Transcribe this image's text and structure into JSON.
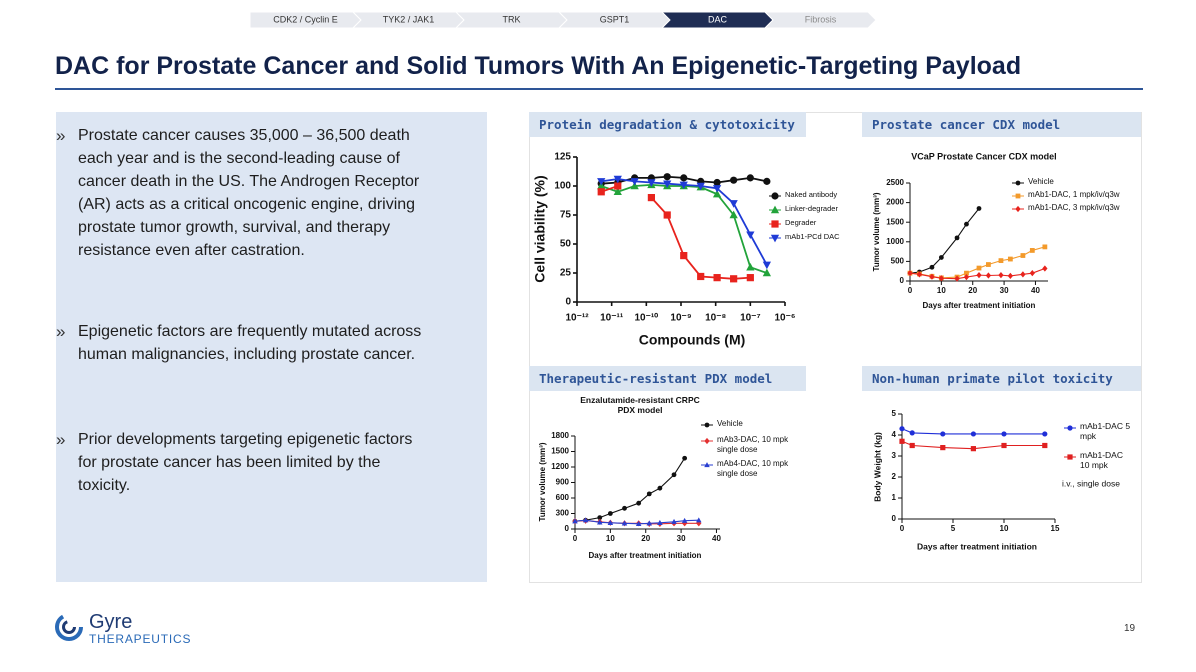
{
  "nav": {
    "tabs": [
      "CDK2 / Cyclin E",
      "TYK2 / JAK1",
      "TRK",
      "GSPT1",
      "DAC",
      "Fibrosis"
    ],
    "active_tab": 4
  },
  "header": {
    "title": "DAC for Prostate Cancer and Solid Tumors With An Epigenetic-Targeting Payload"
  },
  "bullets": [
    "Prostate cancer causes 35,000 – 36,500 death each year and is the second-leading cause of cancer death in the US. The Androgen Receptor (AR) acts as a critical oncogenic engine, driving prostate tumor growth, survival, and therapy resistance even after castration.",
    "Epigenetic factors are frequently mutated across human malignancies, including prostate cancer.",
    "Prior developments targeting epigenetic factors for prostate cancer has been limited by the toxicity."
  ],
  "panels": [
    "Protein degradation & cytotoxicity",
    "Prostate cancer CDX model",
    "Therapeutic-resistant PDX model",
    "Non-human primate pilot toxicity"
  ],
  "chart_data": [
    {
      "type": "line",
      "x_label": "Compounds (M)",
      "y_label": "Cell viability (%)",
      "xscale": "log",
      "x": [
        5e-12,
        1.5e-11,
        4.6e-11,
        1.4e-10,
        4e-10,
        1.2e-09,
        3.7e-09,
        1.1e-08,
        3.3e-08,
        1e-07,
        3e-07
      ],
      "xlim": [
        1e-12,
        1e-06
      ],
      "xticks": [
        {
          "value": 1e-12,
          "label": "10⁻¹²"
        },
        {
          "value": 1e-11,
          "label": "10⁻¹¹"
        },
        {
          "value": 1e-10,
          "label": "10⁻¹⁰"
        },
        {
          "value": 1e-09,
          "label": "10⁻⁹"
        },
        {
          "value": 1e-08,
          "label": "10⁻⁸"
        },
        {
          "value": 1e-07,
          "label": "10⁻⁷"
        },
        {
          "value": 1e-06,
          "label": "10⁻⁶"
        }
      ],
      "ylim": [
        0,
        125
      ],
      "yticks": [
        0,
        25,
        50,
        75,
        100,
        125
      ],
      "series": [
        {
          "name": "Naked antibody",
          "color": "#111111",
          "marker": "circle",
          "values": [
            102,
            103,
            107,
            107,
            108,
            107,
            104,
            103,
            105,
            107,
            104
          ]
        },
        {
          "name": "Linker-degrader",
          "color": "#22a33a",
          "marker": "triangle",
          "values": [
            100,
            95,
            100,
            101,
            100,
            100,
            99,
            93,
            75,
            30,
            25
          ]
        },
        {
          "name": "Degrader",
          "color": "#e8231d",
          "marker": "square",
          "values": [
            95,
            100,
            null,
            90,
            75,
            40,
            22,
            21,
            20,
            21,
            null
          ]
        },
        {
          "name": "mAb1-PCd DAC",
          "color": "#1f3bd6",
          "marker": "triangle-down",
          "values": [
            104,
            106,
            104,
            103,
            102,
            101,
            100,
            98,
            85,
            58,
            32
          ]
        }
      ]
    },
    {
      "type": "line",
      "title": "VCaP Prostate Cancer CDX model",
      "x_label": "Days after treatment initiation",
      "y_label": "Tumor volume (mm³)",
      "x": [
        0,
        3,
        7,
        10,
        15,
        18,
        22,
        25,
        29,
        32,
        36,
        39,
        43
      ],
      "xlim": [
        0,
        44
      ],
      "xticks": [
        0,
        10,
        20,
        30,
        40
      ],
      "ylim": [
        0,
        2500
      ],
      "yticks": [
        0,
        500,
        1000,
        1500,
        2000,
        2500
      ],
      "series": [
        {
          "name": "Vehicle",
          "color": "#111111",
          "marker": "circle",
          "values": [
            200,
            230,
            350,
            600,
            1100,
            1450,
            1850,
            null,
            null,
            null,
            null,
            null,
            null
          ]
        },
        {
          "name": "mAb1-DAC, 1 mpk/iv/q3w",
          "color": "#f39a2b",
          "marker": "square",
          "values": [
            200,
            180,
            120,
            80,
            100,
            200,
            330,
            420,
            520,
            560,
            650,
            780,
            870
          ]
        },
        {
          "name": "mAb1-DAC, 3 mpk/iv/q3w",
          "color": "#e8231d",
          "marker": "diamond",
          "values": [
            200,
            170,
            110,
            70,
            60,
            100,
            150,
            140,
            150,
            130,
            170,
            200,
            320
          ]
        }
      ]
    },
    {
      "type": "line",
      "title": "Enzalutamide-resistant CRPC PDX model",
      "x_label": "Days after treatment initiation",
      "y_label": "Tumor volume (mm³)",
      "x": [
        0,
        3,
        7,
        10,
        14,
        18,
        21,
        24,
        28,
        31,
        35
      ],
      "xlim": [
        0,
        41
      ],
      "xticks": [
        0,
        10,
        20,
        30,
        40
      ],
      "ylim": [
        0,
        1800
      ],
      "yticks": [
        0,
        300,
        600,
        900,
        1200,
        1500,
        1800
      ],
      "series": [
        {
          "name": "Vehicle",
          "color": "#111111",
          "marker": "circle",
          "values": [
            150,
            170,
            220,
            300,
            400,
            500,
            680,
            790,
            1050,
            1370,
            null
          ]
        },
        {
          "name": "mAb3-DAC, 10 mpk single dose",
          "color": "#e33030",
          "marker": "diamond",
          "values": [
            150,
            160,
            140,
            120,
            110,
            110,
            100,
            100,
            110,
            110,
            110
          ]
        },
        {
          "name": "mAb4-DAC, 10 mpk single dose",
          "color": "#2a3fd0",
          "marker": "triangle",
          "values": [
            150,
            170,
            130,
            120,
            110,
            100,
            110,
            120,
            140,
            160,
            170
          ]
        }
      ]
    },
    {
      "type": "line",
      "x_label": "Days after treatment initiation",
      "y_label": "Body Weight (kg)",
      "annotation": "i.v., single dose",
      "x": [
        0,
        1,
        4,
        7,
        10,
        14
      ],
      "xlim": [
        0,
        15
      ],
      "xticks": [
        0,
        5,
        10,
        15
      ],
      "ylim": [
        0,
        5
      ],
      "yticks": [
        0,
        1,
        2,
        3,
        4,
        5
      ],
      "series": [
        {
          "name": "mAb1-DAC 5 mpk",
          "color": "#1f2fd8",
          "marker": "circle",
          "values": [
            4.3,
            4.1,
            4.05,
            4.05,
            4.05,
            4.05
          ]
        },
        {
          "name": "mAb1-DAC 10 mpk",
          "color": "#e02020",
          "marker": "square",
          "values": [
            3.7,
            3.5,
            3.4,
            3.35,
            3.5,
            3.5
          ]
        }
      ]
    }
  ],
  "footer": {
    "logo_name": "Gyre",
    "logo_sub": "THERAPEUTICS",
    "page_number": 19
  }
}
